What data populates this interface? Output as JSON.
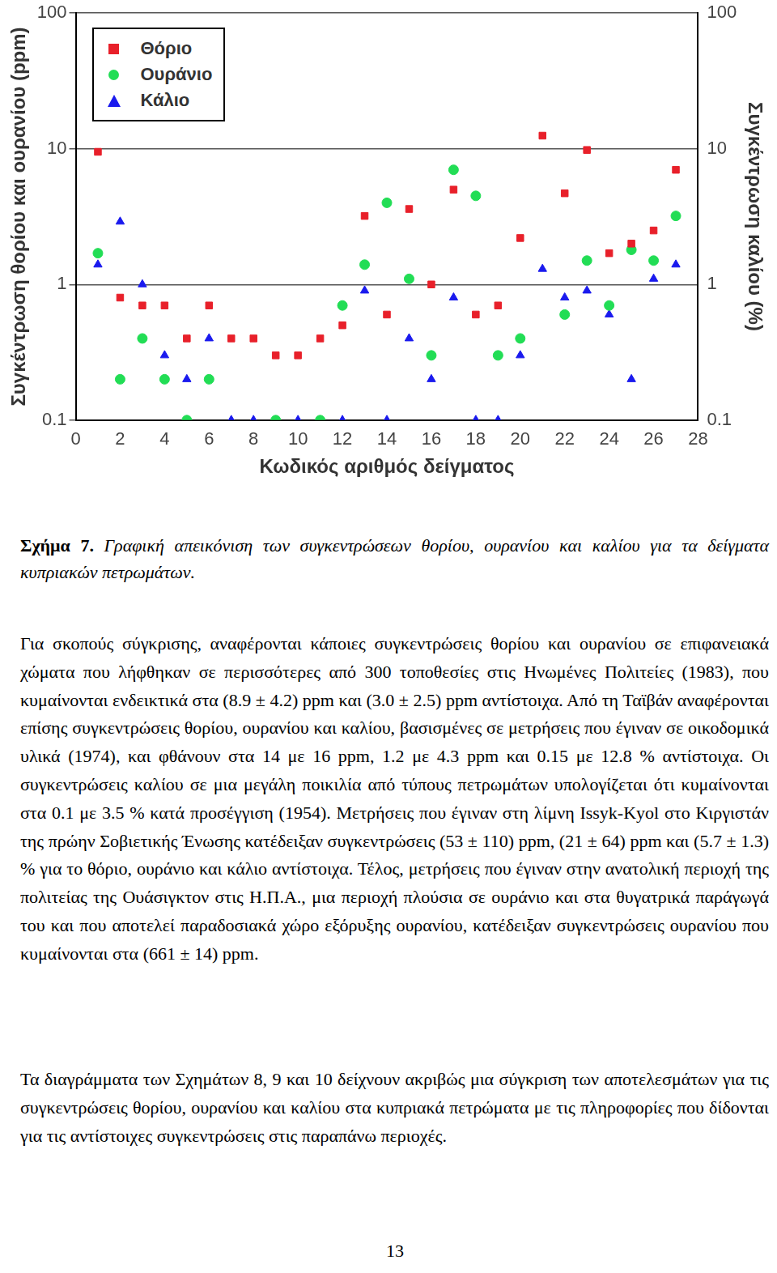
{
  "chart_data": {
    "type": "scatter",
    "xlabel": "Κωδικός αριθμός δείγματος",
    "ylabel": "Συγκέντρωση θορίου και ουρανίου (ppm)",
    "y2label": "Συγκέντρωση καλίου (%)",
    "x": [
      1,
      2,
      3,
      4,
      5,
      6,
      7,
      8,
      9,
      10,
      11,
      12,
      13,
      14,
      15,
      16,
      17,
      18,
      19,
      20,
      21,
      22,
      23,
      24,
      25,
      26,
      27
    ],
    "series": [
      {
        "name": "Θόριο",
        "color": "#e8202a",
        "marker": "square",
        "values": [
          9.5,
          0.8,
          0.7,
          0.7,
          0.4,
          0.7,
          0.4,
          0.4,
          0.3,
          0.3,
          0.4,
          0.5,
          3.2,
          0.6,
          3.6,
          1.0,
          5.0,
          0.6,
          0.7,
          2.2,
          12.5,
          4.7,
          9.8,
          1.7,
          2.0,
          2.5,
          7.0
        ]
      },
      {
        "name": "Ουράνιο",
        "color": "#22dd55",
        "marker": "circle",
        "values": [
          1.7,
          0.2,
          0.4,
          0.2,
          0.1,
          0.2,
          null,
          null,
          0.1,
          null,
          0.1,
          0.7,
          1.4,
          4.0,
          1.1,
          0.3,
          7.0,
          4.5,
          0.3,
          0.4,
          null,
          0.6,
          1.5,
          0.7,
          1.8,
          1.5,
          3.2
        ]
      },
      {
        "name": "Κάλιο",
        "color": "#1a1aee",
        "marker": "triangle",
        "axis": "y2",
        "values": [
          1.4,
          2.9,
          1.0,
          0.3,
          0.2,
          0.4,
          0.1,
          0.1,
          null,
          0.1,
          null,
          0.1,
          0.9,
          0.1,
          0.4,
          0.2,
          0.8,
          0.1,
          0.1,
          0.3,
          1.3,
          0.8,
          0.9,
          0.6,
          0.2,
          1.1,
          1.4
        ]
      }
    ],
    "xlim": [
      0,
      28
    ],
    "xticks": [
      0,
      2,
      4,
      6,
      8,
      10,
      12,
      14,
      16,
      18,
      20,
      22,
      24,
      26,
      28
    ],
    "ylim": [
      0.1,
      100
    ],
    "yticks": [
      0.1,
      1,
      10,
      100
    ],
    "y2lim": [
      0.1,
      100
    ],
    "y2ticks": [
      0.1,
      1,
      10,
      100
    ],
    "log": "y",
    "grid": true,
    "legend": "top-left"
  },
  "caption": {
    "label": "Σχήμα 7.",
    "text": "Γραφική απεικόνιση των συγκεντρώσεων θορίου, ουρανίου και καλίου για τα δείγματα κυπριακών πετρωμάτων."
  },
  "paragraphs": [
    "Για σκοπούς σύγκρισης, αναφέρονται κάποιες συγκεντρώσεις θορίου και ουρανίου σε επιφανειακά χώματα που λήφθηκαν σε περισσότερες από 300 τοποθεσίες στις Ηνωμένες Πολιτείες (1983), που κυμαίνονται ενδεικτικά στα (8.9 ± 4.2) ppm και (3.0 ± 2.5) ppm αντίστοιχα. Από τη Ταϊβάν αναφέρονται επίσης συγκεντρώσεις θορίου, ουρανίου και καλίου, βασισμένες σε μετρήσεις που έγιναν σε οικοδομικά υλικά (1974), και φθάνουν στα 14 με 16 ppm, 1.2 με 4.3 ppm και 0.15 με 12.8 % αντίστοιχα. Οι συγκεντρώσεις καλίου σε μια μεγάλη ποικιλία από τύπους πετρωμάτων υπολογίζεται ότι κυμαίνονται στα 0.1 με 3.5 % κατά προσέγγιση (1954). Μετρήσεις που έγιναν στη λίμνη Issyk-Kyol στο Κιργιστάν της πρώην Σοβιετικής Ένωσης κατέδειξαν συγκεντρώσεις (53 ± 110) ppm, (21 ± 64) ppm και (5.7 ± 1.3) % για το θόριο, ουράνιο και κάλιο αντίστοιχα. Τέλος, μετρήσεις που έγιναν στην ανατολική περιοχή της πολιτείας της Ουάσιγκτον στις Η.Π.Α., μια περιοχή πλούσια σε ουράνιο και στα θυγατρικά παράγωγά του και που αποτελεί παραδοσιακά χώρο εξόρυξης ουρανίου, κατέδειξαν συγκεντρώσεις ουρανίου που κυμαίνονται στα (661 ± 14) ppm.",
    "Τα διαγράμματα των Σχημάτων 8, 9 και 10 δείχνουν ακριβώς μια σύγκριση των αποτελεσμάτων για τις συγκεντρώσεις θορίου, ουρανίου και καλίου στα κυπριακά πετρώματα με τις πληροφορίες που δίδονται για τις αντίστοιχες συγκεντρώσεις στις παραπάνω περιοχές."
  ],
  "page_number": "13"
}
